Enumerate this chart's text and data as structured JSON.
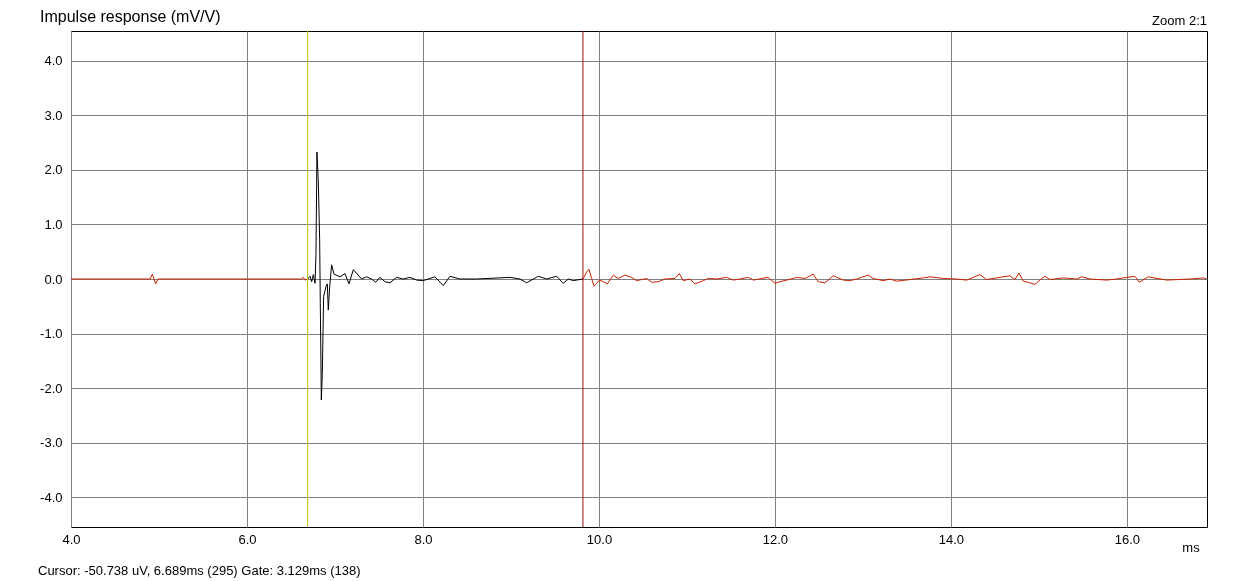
{
  "chart_data": {
    "type": "line",
    "title": "Impulse response (mV/V)",
    "xlabel": "ms",
    "annotations": [
      "Zoom 2:1",
      "Cursor: -50.738 uV, 6.689ms (295)  Gate: 3.129ms (138)"
    ],
    "xlim": [
      4.0,
      16.91
    ],
    "ylim": [
      -4.55,
      4.55
    ],
    "xticks": [
      {
        "value": 4,
        "label": "4.0"
      },
      {
        "value": 6,
        "label": "6.0"
      },
      {
        "value": 8,
        "label": "8.0"
      },
      {
        "value": 10,
        "label": "10.0"
      },
      {
        "value": 12,
        "label": "12.0"
      },
      {
        "value": 14,
        "label": "14.0"
      },
      {
        "value": 16,
        "label": "16.0"
      }
    ],
    "yticks": [
      {
        "value": 4,
        "label": "4.0"
      },
      {
        "value": 3,
        "label": "3.0"
      },
      {
        "value": 2,
        "label": "2.0"
      },
      {
        "value": 1,
        "label": "1.0"
      },
      {
        "value": 0,
        "label": "0.0"
      },
      {
        "value": -1,
        "label": "-1.0"
      },
      {
        "value": -2,
        "label": "-2.0"
      },
      {
        "value": -3,
        "label": "-3.0"
      },
      {
        "value": -4,
        "label": "-4.0"
      }
    ],
    "grid": true,
    "marker": "none",
    "line_style": "solid",
    "ref_lines": [
      {
        "axis": "x",
        "value": 6.689,
        "color": "#c8c000"
      },
      {
        "axis": "x",
        "value": 9.818,
        "color": "#a01010"
      }
    ],
    "series": [
      {
        "color": "#cc2200",
        "x": [
          4.0,
          4.9,
          4.924,
          4.962,
          4.99,
          6.62,
          6.64,
          6.66,
          6.689
        ],
        "values": [
          0,
          0,
          0.09,
          -0.09,
          0,
          0,
          0.03,
          -0.02,
          0
        ]
      },
      {
        "color": "#000000",
        "x": [
          6.689,
          6.716,
          6.735,
          6.754,
          6.773,
          6.784,
          6.795,
          6.811,
          6.826,
          6.833,
          6.845,
          6.856,
          6.871,
          6.898,
          6.913,
          6.924,
          6.94,
          6.962,
          6.989,
          7.057,
          7.114,
          7.159,
          7.208,
          7.254,
          7.303,
          7.36,
          7.417,
          7.462,
          7.511,
          7.568,
          7.625,
          7.701,
          7.776,
          7.852,
          7.928,
          8.003,
          8.136,
          8.231,
          8.307,
          8.42,
          8.61,
          8.989,
          9.102,
          9.178,
          9.31,
          9.405,
          9.519,
          9.594,
          9.651,
          9.708,
          9.818
        ],
        "values": [
          0,
          0.05,
          -0.05,
          0.08,
          -0.08,
          0.47,
          2.33,
          1.76,
          0.72,
          -0.45,
          -2.22,
          -1.73,
          -0.32,
          -0.14,
          -0.09,
          -0.57,
          -0.14,
          0.26,
          0.09,
          0.04,
          0.1,
          -0.09,
          0.17,
          0.09,
          0,
          0.04,
          0,
          -0.06,
          0.03,
          -0.05,
          -0.07,
          0.03,
          0,
          0.03,
          -0.02,
          -0.03,
          0.04,
          -0.12,
          0.05,
          0,
          0,
          0.03,
          0,
          -0.07,
          0.05,
          0,
          0.05,
          -0.08,
          0,
          -0.03,
          0
        ]
      },
      {
        "color": "#cc2200",
        "x": [
          9.818,
          9.86,
          9.886,
          9.917,
          9.943,
          9.974,
          10.004,
          10.049,
          10.095,
          10.163,
          10.22,
          10.295,
          10.371,
          10.428,
          10.542,
          10.599,
          10.674,
          10.75,
          10.864,
          10.913,
          10.958,
          11.034,
          11.091,
          11.186,
          11.242,
          11.337,
          11.451,
          11.526,
          11.602,
          11.697,
          11.754,
          11.924,
          12.0,
          12.057,
          12.208,
          12.246,
          12.341,
          12.435,
          12.492,
          12.568,
          12.663,
          12.776,
          12.852,
          12.928,
          13.06,
          13.115,
          13.229,
          13.307,
          13.383,
          13.686,
          13.761,
          13.913,
          14.064,
          14.178,
          14.33,
          14.405,
          14.67,
          14.727,
          14.773,
          14.822,
          14.879,
          14.955,
          15.011,
          15.068,
          15.125,
          15.277,
          15.428,
          15.485,
          15.58,
          15.769,
          15.883,
          15.958,
          16.091,
          16.14,
          16.242,
          16.451,
          16.716,
          16.867,
          16.905
        ],
        "values": [
          0,
          0.13,
          0.18,
          0.01,
          -0.13,
          -0.08,
          -0.02,
          -0.05,
          -0.09,
          0.07,
          0.01,
          0.07,
          0.03,
          -0.03,
          0.01,
          -0.06,
          -0.05,
          0,
          0.01,
          0.1,
          -0.03,
          0,
          -0.09,
          -0.03,
          0.01,
          0,
          0.03,
          -0.02,
          0,
          0.03,
          -0.02,
          0.03,
          -0.08,
          -0.05,
          0.01,
          0.03,
          0.01,
          0.09,
          -0.05,
          -0.07,
          0.06,
          -0.02,
          -0.03,
          0,
          0.07,
          0.01,
          -0.03,
          0,
          -0.04,
          0.02,
          0.04,
          0.01,
          0,
          -0.02,
          0.08,
          -0.01,
          0.06,
          -0.01,
          0.11,
          -0.04,
          -0.06,
          -0.1,
          -0.02,
          0.05,
          -0.01,
          0.02,
          0,
          0.04,
          0,
          -0.02,
          0,
          0.02,
          0.05,
          -0.06,
          0.04,
          -0.02,
          0,
          0.02,
          0
        ]
      }
    ]
  }
}
